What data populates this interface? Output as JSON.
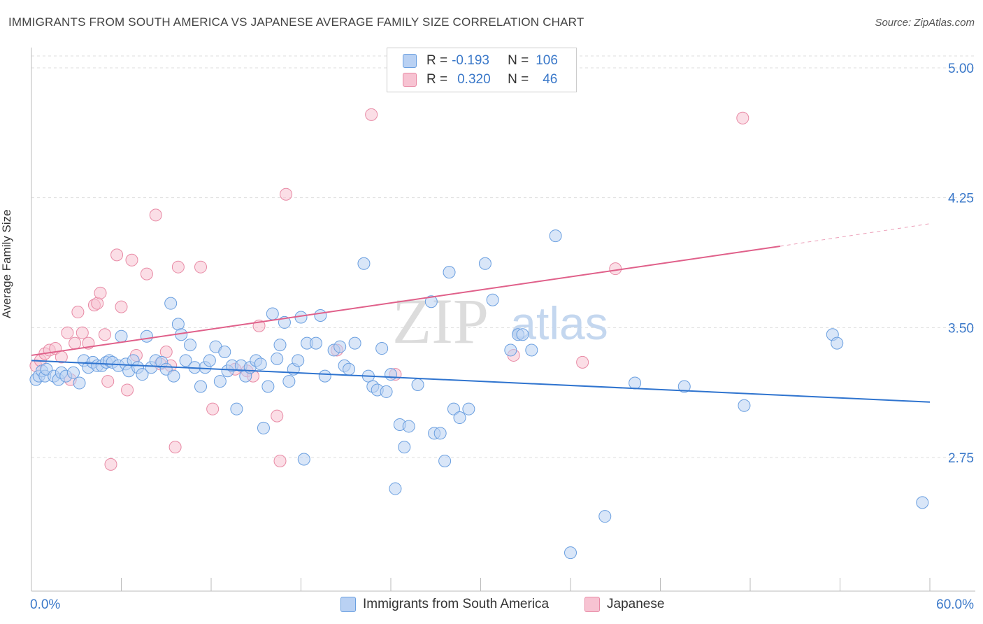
{
  "header": {
    "title": "IMMIGRANTS FROM SOUTH AMERICA VS JAPANESE AVERAGE FAMILY SIZE CORRELATION CHART",
    "source": "Source: ZipAtlas.com"
  },
  "legend": {
    "row1": {
      "r_label": "R =",
      "r_value": "-0.193",
      "n_label": "N =",
      "n_value": "106"
    },
    "row2": {
      "r_label": "R =",
      "r_value": "0.320",
      "n_label": "N =",
      "n_value": "46"
    }
  },
  "bottom_legend": {
    "series1": "Immigrants from South America",
    "series2": "Japanese"
  },
  "watermark": {
    "zip": "ZIP",
    "atlas": "atlas"
  },
  "chart_data": {
    "type": "scatter",
    "title": "IMMIGRANTS FROM SOUTH AMERICA VS JAPANESE AVERAGE FAMILY SIZE CORRELATION CHART",
    "xlabel": "",
    "ylabel": "Average Family Size",
    "xlim": [
      0,
      60
    ],
    "ylim": [
      2.05,
      5.12
    ],
    "x_tick_labels": [
      "0.0%",
      "60.0%"
    ],
    "y_ticks": [
      2.75,
      3.5,
      4.25,
      5.0
    ],
    "y_tick_labels": [
      "2.75",
      "3.50",
      "4.25",
      "5.00"
    ],
    "colors": {
      "blue": "#6a9fe0",
      "blue_fill": "#b9d1f3",
      "blue_line": "#2f74cf",
      "pink": "#e88aa5",
      "pink_fill": "#f7c3d2",
      "pink_line": "#e0608a"
    },
    "series": [
      {
        "name": "Immigrants from South America",
        "color": "#6a9fe0",
        "trend": {
          "x_start": 0,
          "y_start": 3.31,
          "x_end": 60,
          "y_end": 3.07
        },
        "points": [
          [
            0.3,
            3.2
          ],
          [
            0.5,
            3.22
          ],
          [
            0.7,
            3.25
          ],
          [
            0.9,
            3.22
          ],
          [
            1.0,
            3.26
          ],
          [
            1.5,
            3.22
          ],
          [
            1.8,
            3.2
          ],
          [
            2.0,
            3.24
          ],
          [
            2.3,
            3.22
          ],
          [
            2.8,
            3.24
          ],
          [
            3.2,
            3.18
          ],
          [
            3.5,
            3.31
          ],
          [
            3.8,
            3.27
          ],
          [
            4.1,
            3.3
          ],
          [
            4.4,
            3.28
          ],
          [
            4.7,
            3.28
          ],
          [
            5.0,
            3.3
          ],
          [
            5.2,
            3.31
          ],
          [
            5.4,
            3.3
          ],
          [
            5.8,
            3.28
          ],
          [
            6.0,
            3.45
          ],
          [
            6.3,
            3.29
          ],
          [
            6.5,
            3.25
          ],
          [
            6.8,
            3.31
          ],
          [
            7.1,
            3.27
          ],
          [
            7.4,
            3.23
          ],
          [
            7.7,
            3.45
          ],
          [
            8.0,
            3.27
          ],
          [
            8.3,
            3.31
          ],
          [
            8.7,
            3.3
          ],
          [
            9.0,
            3.26
          ],
          [
            9.3,
            3.64
          ],
          [
            9.5,
            3.22
          ],
          [
            9.8,
            3.52
          ],
          [
            10.0,
            3.46
          ],
          [
            10.3,
            3.31
          ],
          [
            10.6,
            3.4
          ],
          [
            10.9,
            3.27
          ],
          [
            11.3,
            3.16
          ],
          [
            11.6,
            3.27
          ],
          [
            11.9,
            3.31
          ],
          [
            12.3,
            3.39
          ],
          [
            12.6,
            3.19
          ],
          [
            12.9,
            3.36
          ],
          [
            13.1,
            3.25
          ],
          [
            13.4,
            3.28
          ],
          [
            13.7,
            3.03
          ],
          [
            14.0,
            3.28
          ],
          [
            14.3,
            3.22
          ],
          [
            14.6,
            3.27
          ],
          [
            15.0,
            3.31
          ],
          [
            15.3,
            3.29
          ],
          [
            15.5,
            2.92
          ],
          [
            15.8,
            3.16
          ],
          [
            16.1,
            3.58
          ],
          [
            16.4,
            3.32
          ],
          [
            16.6,
            3.4
          ],
          [
            16.9,
            3.53
          ],
          [
            17.2,
            3.19
          ],
          [
            17.5,
            3.26
          ],
          [
            17.8,
            3.31
          ],
          [
            18.0,
            3.56
          ],
          [
            18.2,
            2.74
          ],
          [
            18.4,
            3.41
          ],
          [
            19.0,
            3.41
          ],
          [
            19.3,
            3.57
          ],
          [
            19.6,
            3.22
          ],
          [
            20.2,
            3.37
          ],
          [
            20.6,
            3.39
          ],
          [
            20.9,
            3.28
          ],
          [
            21.2,
            3.26
          ],
          [
            21.6,
            3.41
          ],
          [
            22.2,
            3.87
          ],
          [
            22.5,
            3.22
          ],
          [
            22.8,
            3.16
          ],
          [
            23.1,
            3.14
          ],
          [
            23.4,
            3.38
          ],
          [
            23.7,
            3.13
          ],
          [
            24.0,
            3.23
          ],
          [
            24.3,
            2.57
          ],
          [
            24.6,
            2.94
          ],
          [
            24.9,
            2.81
          ],
          [
            25.2,
            2.93
          ],
          [
            25.8,
            3.17
          ],
          [
            26.7,
            3.65
          ],
          [
            26.9,
            2.89
          ],
          [
            27.3,
            2.89
          ],
          [
            27.6,
            2.73
          ],
          [
            27.9,
            3.82
          ],
          [
            28.2,
            3.03
          ],
          [
            28.6,
            2.98
          ],
          [
            29.2,
            3.03
          ],
          [
            30.3,
            3.87
          ],
          [
            30.8,
            3.66
          ],
          [
            32.0,
            3.37
          ],
          [
            32.5,
            3.46
          ],
          [
            32.8,
            3.46
          ],
          [
            33.4,
            3.37
          ],
          [
            35.0,
            4.03
          ],
          [
            36.0,
            2.2
          ],
          [
            38.3,
            2.41
          ],
          [
            40.3,
            3.18
          ],
          [
            43.6,
            3.16
          ],
          [
            47.6,
            3.05
          ],
          [
            53.5,
            3.46
          ],
          [
            53.8,
            3.41
          ],
          [
            59.5,
            2.49
          ]
        ]
      },
      {
        "name": "Japanese",
        "color": "#e88aa5",
        "trend": {
          "x_start": 0,
          "y_start": 3.34,
          "x_end": 50,
          "y_end": 3.97,
          "dash_x_end": 60,
          "dash_y_end": 4.1
        },
        "points": [
          [
            0.3,
            3.28
          ],
          [
            0.6,
            3.31
          ],
          [
            0.9,
            3.35
          ],
          [
            1.2,
            3.37
          ],
          [
            1.6,
            3.38
          ],
          [
            2.0,
            3.33
          ],
          [
            2.4,
            3.47
          ],
          [
            2.6,
            3.2
          ],
          [
            2.9,
            3.41
          ],
          [
            3.1,
            3.59
          ],
          [
            3.4,
            3.47
          ],
          [
            3.8,
            3.41
          ],
          [
            4.2,
            3.63
          ],
          [
            4.4,
            3.64
          ],
          [
            4.6,
            3.7
          ],
          [
            4.9,
            3.46
          ],
          [
            5.1,
            3.19
          ],
          [
            5.3,
            2.71
          ],
          [
            5.7,
            3.92
          ],
          [
            6.0,
            3.62
          ],
          [
            6.4,
            3.14
          ],
          [
            6.7,
            3.89
          ],
          [
            7.0,
            3.34
          ],
          [
            7.7,
            3.81
          ],
          [
            8.3,
            4.15
          ],
          [
            8.6,
            3.29
          ],
          [
            9.0,
            3.36
          ],
          [
            9.3,
            3.28
          ],
          [
            9.6,
            2.81
          ],
          [
            9.8,
            3.85
          ],
          [
            11.3,
            3.85
          ],
          [
            12.1,
            3.03
          ],
          [
            13.6,
            3.26
          ],
          [
            14.4,
            3.25
          ],
          [
            14.8,
            3.22
          ],
          [
            15.2,
            3.51
          ],
          [
            16.4,
            2.99
          ],
          [
            16.6,
            2.73
          ],
          [
            17.0,
            4.27
          ],
          [
            20.4,
            3.37
          ],
          [
            22.7,
            4.73
          ],
          [
            24.3,
            3.23
          ],
          [
            32.2,
            3.34
          ],
          [
            36.8,
            3.3
          ],
          [
            39.0,
            3.84
          ],
          [
            47.5,
            4.71
          ]
        ]
      }
    ]
  }
}
